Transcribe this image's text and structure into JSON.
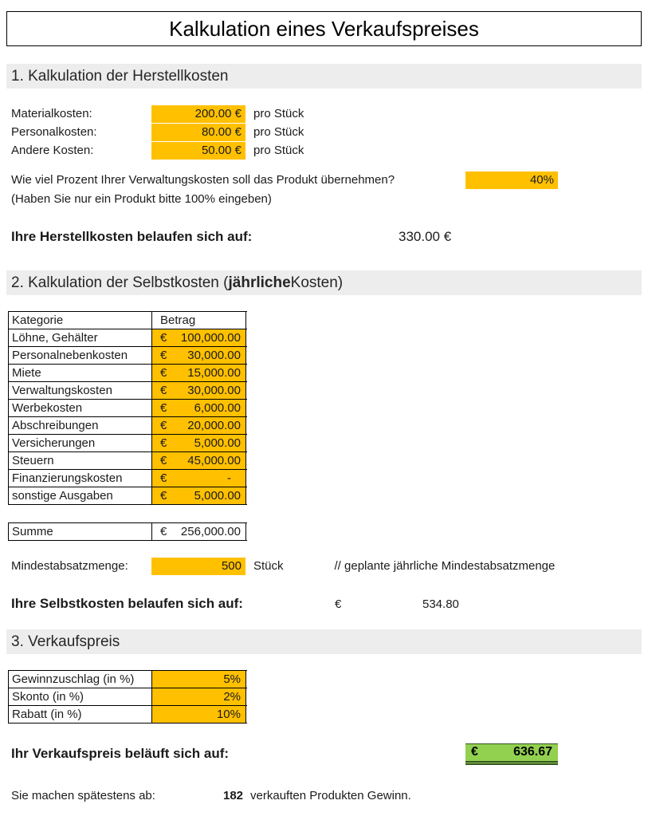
{
  "title": "Kalkulation eines Verkaufspreises",
  "colors": {
    "input_orange": "#FFC000",
    "section_gray": "#EDEDED",
    "result_green": "#92D050",
    "result_green_border": "#375623"
  },
  "section1": {
    "heading": "1. Kalkulation der Herstellkosten",
    "cost_rows": [
      {
        "label": "Materialkosten:",
        "value": "200.00 €",
        "unit": "pro Stück"
      },
      {
        "label": "Personalkosten:",
        "value": "80.00 €",
        "unit": "pro Stück"
      },
      {
        "label": "Andere Kosten:",
        "value": "50.00 €",
        "unit": "pro Stück"
      }
    ],
    "question": "Wie viel Prozent Ihrer Verwaltungskosten soll das Produkt übernehmen?",
    "question_value": "40%",
    "question_note": "(Haben Sie nur ein Produkt bitte 100% eingeben)",
    "result_label": "Ihre Herstellkosten belaufen sich auf:",
    "result_value": "330.00 €"
  },
  "section2": {
    "heading_prefix": "2. Kalkulation der Selbstkosten (",
    "heading_bold": "jährliche",
    "heading_suffix": " Kosten)",
    "table": {
      "header_category": "Kategorie",
      "header_amount": "Betrag",
      "rows": [
        {
          "category": "Löhne, Gehälter",
          "currency": "€",
          "amount": "100,000.00"
        },
        {
          "category": "Personalnebenkosten",
          "currency": "€",
          "amount": "30,000.00"
        },
        {
          "category": "Miete",
          "currency": "€",
          "amount": "15,000.00"
        },
        {
          "category": "Verwaltungskosten",
          "currency": "€",
          "amount": "30,000.00"
        },
        {
          "category": "Werbekosten",
          "currency": "€",
          "amount": "6,000.00"
        },
        {
          "category": "Abschreibungen",
          "currency": "€",
          "amount": "20,000.00"
        },
        {
          "category": "Versicherungen",
          "currency": "€",
          "amount": "5,000.00"
        },
        {
          "category": "Steuern",
          "currency": "€",
          "amount": "45,000.00"
        },
        {
          "category": "Finanzierungskosten",
          "currency": "€",
          "amount": "-"
        },
        {
          "category": "sonstige Ausgaben",
          "currency": "€",
          "amount": "5,000.00"
        }
      ]
    },
    "summe": {
      "label": "Summe",
      "currency": "€",
      "amount": "256,000.00"
    },
    "min_quantity": {
      "label": "Mindestabsatzmenge:",
      "value": "500",
      "unit": "Stück",
      "note": "// geplante jährliche Mindestabsatzmenge"
    },
    "result_label": "Ihre Selbstkosten belaufen sich auf:",
    "result_currency": "€",
    "result_value": "534.80"
  },
  "section3": {
    "heading": "3. Verkaufspreis",
    "percent_rows": [
      {
        "label": "Gewinnzuschlag (in %)",
        "value": "5%"
      },
      {
        "label": "Skonto (in %)",
        "value": "2%"
      },
      {
        "label": "Rabatt (in %)",
        "value": "10%"
      }
    ],
    "result_label": "Ihr Verkaufspreis beläuft sich auf:",
    "result_currency": "€",
    "result_value": "636.67",
    "footer": {
      "prefix": "Sie machen spätestens ab:",
      "value": "182",
      "suffix": "verkauften Produkten Gewinn."
    }
  }
}
